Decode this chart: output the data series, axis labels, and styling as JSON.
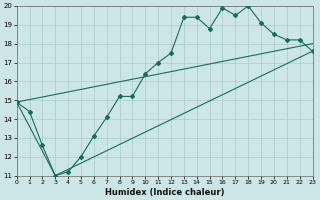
{
  "xlabel": "Humidex (Indice chaleur)",
  "xlim": [
    0,
    23
  ],
  "ylim": [
    11,
    20
  ],
  "xticks": [
    0,
    1,
    2,
    3,
    4,
    5,
    6,
    7,
    8,
    9,
    10,
    11,
    12,
    13,
    14,
    15,
    16,
    17,
    18,
    19,
    20,
    21,
    22,
    23
  ],
  "yticks": [
    11,
    12,
    13,
    14,
    15,
    16,
    17,
    18,
    19,
    20
  ],
  "bg_color": "#cce5e5",
  "line_color": "#1a6b5a",
  "grid_color": "#aacccc",
  "line1_x": [
    0,
    1,
    2,
    3,
    4,
    5,
    6,
    7,
    8,
    9,
    10,
    11,
    12,
    13,
    14,
    15,
    16,
    17,
    18,
    19,
    20,
    21,
    22,
    23
  ],
  "line1_y": [
    14.9,
    14.4,
    12.6,
    11.0,
    11.2,
    12.0,
    13.1,
    14.1,
    15.2,
    15.2,
    16.4,
    17.0,
    17.5,
    19.4,
    19.4,
    18.8,
    19.9,
    19.5,
    20.0,
    19.1,
    18.5,
    18.2,
    18.2,
    17.6
  ],
  "line2_x": [
    0,
    23
  ],
  "line2_y": [
    14.9,
    18.0
  ],
  "line3_x": [
    0,
    3,
    23
  ],
  "line3_y": [
    14.9,
    11.0,
    17.6
  ]
}
